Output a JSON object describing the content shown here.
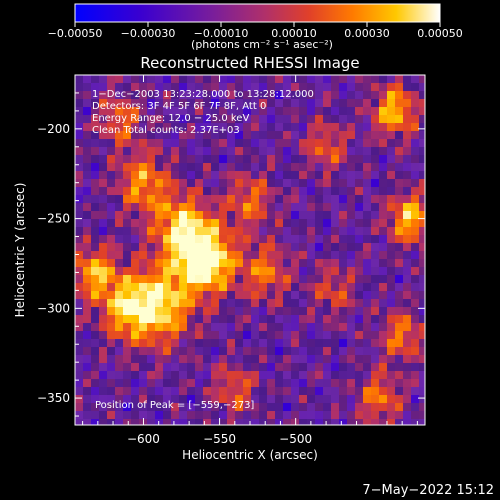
{
  "chart_data": {
    "type": "heatmap",
    "title": "Reconstructed RHESSI Image",
    "xlabel": "Heliocentric X (arcsec)",
    "ylabel": "Heliocentric Y (arcsec)",
    "xlim": [
      -645,
      -415
    ],
    "ylim": [
      -365,
      -170
    ],
    "x_ticks": [
      {
        "value": -600,
        "label": "−600"
      },
      {
        "value": -550,
        "label": "−550"
      },
      {
        "value": -500,
        "label": "−500"
      }
    ],
    "y_ticks": [
      {
        "value": -200,
        "label": "−200"
      },
      {
        "value": -250,
        "label": "−250"
      },
      {
        "value": -300,
        "label": "−300"
      },
      {
        "value": -350,
        "label": "−350"
      }
    ],
    "colorbar": {
      "range": [
        -0.0005,
        0.0005
      ],
      "ticks": [
        {
          "value": -0.0005,
          "label": "−0.00050"
        },
        {
          "value": -0.0003,
          "label": "−0.00030"
        },
        {
          "value": -0.0001,
          "label": "−0.00010"
        },
        {
          "value": 0.0001,
          "label": "0.00010"
        },
        {
          "value": 0.0003,
          "label": "0.00030"
        },
        {
          "value": 0.0005,
          "label": "0.00050"
        }
      ],
      "unit_label": "(photons cm⁻² s⁻¹ asec⁻²)",
      "colors": [
        "#0000ff",
        "#4a00c8",
        "#7a1e9a",
        "#b0306a",
        "#e0402a",
        "#ff7a00",
        "#ffc800",
        "#ffffd0"
      ]
    },
    "annotations": [
      "1−Dec−2003 13:23:28.000 to 13:28:12.000",
      "Detectors: 3F 4F 5F 6F 7F 8F, Att 0",
      "Energy Range: 12.0 − 25.0 keV",
      "Clean    Total counts: 2.37E+03"
    ],
    "peak_label": "Position of Peak = [−559,−273]",
    "peak": {
      "x": -559,
      "y": -273
    }
  },
  "footer": {
    "date": "7−May−2022 15:12"
  }
}
